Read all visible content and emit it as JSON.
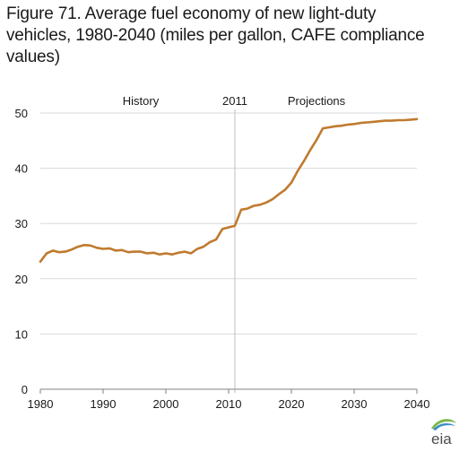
{
  "figure": {
    "title": "Figure 71. Average fuel economy of new light-duty vehicles, 1980-2040 (miles per gallon, CAFE compliance values)"
  },
  "logo": {
    "text": "eia",
    "icon": "eia-logo"
  },
  "chart_data": {
    "type": "line",
    "title": "Figure 71. Average fuel economy of new light-duty vehicles, 1980-2040 (miles per gallon, CAFE compliance values)",
    "xlabel": "",
    "ylabel": "",
    "xlim": [
      1980,
      2040
    ],
    "ylim": [
      0,
      50
    ],
    "x_ticks": [
      1980,
      1990,
      2000,
      2010,
      2020,
      2030,
      2040
    ],
    "y_ticks": [
      0,
      10,
      20,
      30,
      40,
      50
    ],
    "grid": true,
    "legend": "none",
    "divider": {
      "x": 2011,
      "label": "2011"
    },
    "annotations": [
      {
        "text": "History",
        "x": 1996
      },
      {
        "text": "Projections",
        "x": 2024
      }
    ],
    "colors": {
      "line": "#C07A2E",
      "grid": "#D9D9D9",
      "axis": "#808080",
      "divider": "#BFBFBF"
    },
    "series": [
      {
        "x": [
          1980,
          1981,
          1982,
          1983,
          1984,
          1985,
          1986,
          1987,
          1988,
          1989,
          1990,
          1991,
          1992,
          1993,
          1994,
          1995,
          1996,
          1997,
          1998,
          1999,
          2000,
          2001,
          2002,
          2003,
          2004,
          2005,
          2006,
          2007,
          2008,
          2009,
          2010,
          2011,
          2012,
          2013,
          2014,
          2015,
          2016,
          2017,
          2018,
          2019,
          2020,
          2021,
          2022,
          2023,
          2024,
          2025,
          2026,
          2027,
          2028,
          2029,
          2030,
          2031,
          2032,
          2033,
          2034,
          2035,
          2036,
          2037,
          2038,
          2039,
          2040
        ],
        "values": [
          23.1,
          24.6,
          25.1,
          24.8,
          24.9,
          25.3,
          25.8,
          26.1,
          26.0,
          25.6,
          25.4,
          25.5,
          25.1,
          25.2,
          24.8,
          24.9,
          24.9,
          24.6,
          24.7,
          24.4,
          24.6,
          24.4,
          24.7,
          24.9,
          24.6,
          25.4,
          25.8,
          26.6,
          27.1,
          29.0,
          29.3,
          29.6,
          32.5,
          32.7,
          33.2,
          33.4,
          33.8,
          34.4,
          35.3,
          36.1,
          37.4,
          39.5,
          41.3,
          43.3,
          45.1,
          47.2,
          47.4,
          47.6,
          47.7,
          47.9,
          48.0,
          48.2,
          48.3,
          48.4,
          48.5,
          48.6,
          48.6,
          48.7,
          48.7,
          48.8,
          48.9
        ]
      }
    ]
  }
}
